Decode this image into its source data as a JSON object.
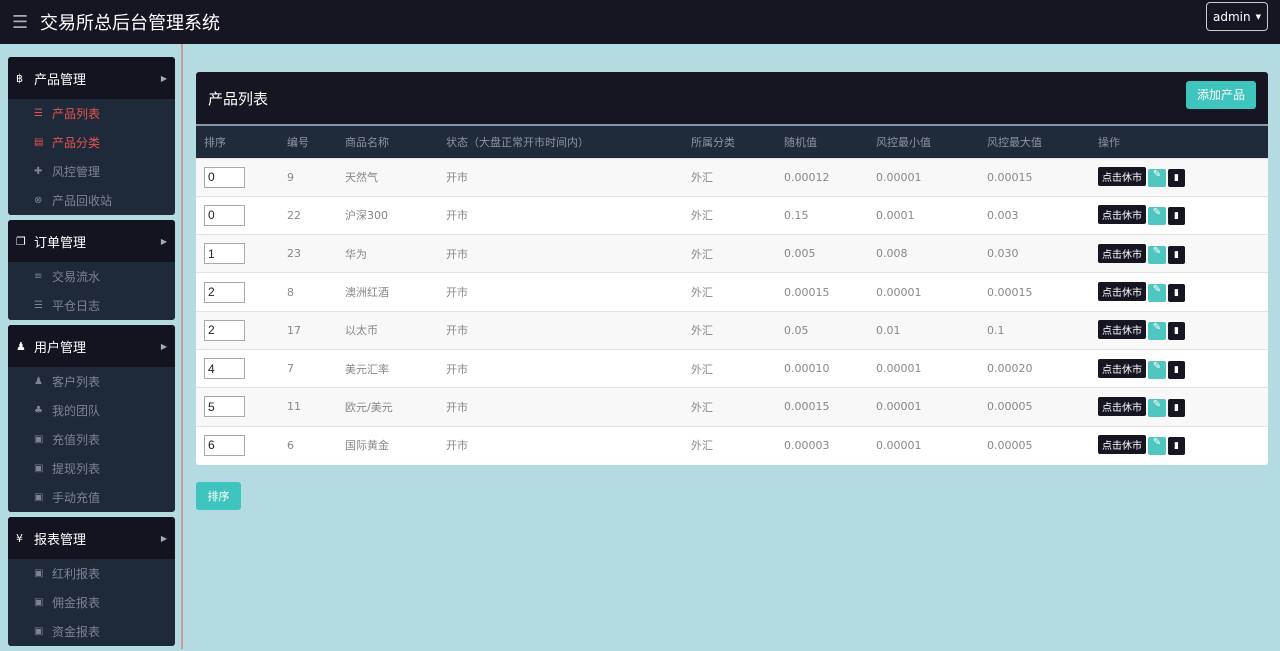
{
  "header": {
    "title": "交易所总后台管理系统",
    "user": "admin"
  },
  "sidebar": [
    {
      "label": "产品管理",
      "icon": "bitcoin-icon",
      "items": [
        {
          "label": "产品列表",
          "icon": "list-icon",
          "active": true
        },
        {
          "label": "产品分类",
          "icon": "list-alt-icon",
          "active": true
        },
        {
          "label": "风控管理",
          "icon": "move-icon"
        },
        {
          "label": "产品回收站",
          "icon": "remove-circle-icon"
        }
      ]
    },
    {
      "label": "订单管理",
      "icon": "copy-icon",
      "items": [
        {
          "label": "交易流水",
          "icon": "align-left-icon"
        },
        {
          "label": "平仓日志",
          "icon": "indent-icon"
        }
      ]
    },
    {
      "label": "用户管理",
      "icon": "user-icon",
      "items": [
        {
          "label": "客户列表",
          "icon": "user-icon"
        },
        {
          "label": "我的团队",
          "icon": "sitemap-icon"
        },
        {
          "label": "充值列表",
          "icon": "money-icon"
        },
        {
          "label": "提现列表",
          "icon": "money-icon"
        },
        {
          "label": "手动充值",
          "icon": "money-icon"
        }
      ]
    },
    {
      "label": "报表管理",
      "icon": "yen-icon",
      "items": [
        {
          "label": "红利报表",
          "icon": "money-icon"
        },
        {
          "label": "佣金报表",
          "icon": "money-icon"
        },
        {
          "label": "资金报表",
          "icon": "money-icon"
        }
      ]
    }
  ],
  "panel": {
    "title": "产品列表",
    "add_label": "添加产品",
    "sort_label": "排序",
    "columns": [
      "排序",
      "编号",
      "商品名称",
      "状态（大盘正常开市时间内）",
      "所属分类",
      "随机值",
      "风控最小值",
      "风控最大值",
      "操作"
    ],
    "action_label": "点击休市",
    "rows": [
      [
        "0",
        "9",
        "天然气",
        "开市",
        "外汇",
        "0.00012",
        "0.00001",
        "0.00015"
      ],
      [
        "0",
        "22",
        "沪深300",
        "开市",
        "外汇",
        "0.15",
        "0.0001",
        "0.003"
      ],
      [
        "1",
        "23",
        "华为",
        "开市",
        "外汇",
        "0.005",
        "0.008",
        "0.030"
      ],
      [
        "2",
        "8",
        "澳洲红酒",
        "开市",
        "外汇",
        "0.00015",
        "0.00001",
        "0.00015"
      ],
      [
        "2",
        "17",
        "以太币",
        "开市",
        "外汇",
        "0.05",
        "0.01",
        "0.1"
      ],
      [
        "4",
        "7",
        "美元汇率",
        "开市",
        "外汇",
        "0.00010",
        "0.00001",
        "0.00020"
      ],
      [
        "5",
        "11",
        "欧元/美元",
        "开市",
        "外汇",
        "0.00015",
        "0.00001",
        "0.00005"
      ],
      [
        "6",
        "6",
        "国际黄金",
        "开市",
        "外汇",
        "0.00003",
        "0.00001",
        "0.00005"
      ]
    ]
  }
}
